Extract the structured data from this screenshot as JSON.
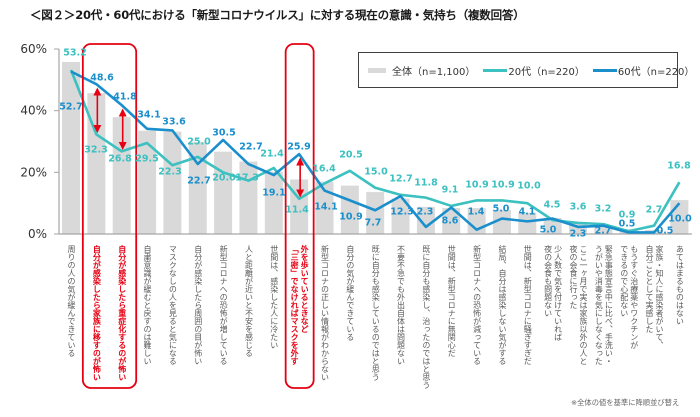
{
  "title": "＜図２＞20代・60代における「新型コロナウイルス」に対する現在の意識・気持ち（複数回答）",
  "footnote": "※全体の値を基準に降順並び替え",
  "colors": {
    "overall": "#d9d9d9",
    "age20s": "#3cc0c0",
    "age60s": "#1a8fcc",
    "highlight": "#e60012",
    "axis": "#a6a6a6"
  },
  "legend": {
    "items": [
      {
        "label": "全体（n=1,100）",
        "kind": "bar",
        "color": "#d9d9d9"
      },
      {
        "label": "20代（n=220）",
        "kind": "line",
        "color": "#3cc0c0"
      },
      {
        "label": "60代（n=220）",
        "kind": "line",
        "color": "#1a8fcc"
      }
    ]
  },
  "chart_data": {
    "type": "bar",
    "title": "＜図２＞20代・60代における「新型コロナウイルス」に対する現在の意識・気持ち（複数回答）",
    "xlabel": "",
    "ylabel": "",
    "ylim": [
      0,
      60
    ],
    "yticks": [
      0,
      20,
      40,
      60
    ],
    "ytick_labels": [
      "0%",
      "20%",
      "40%",
      "60%"
    ],
    "grid": false,
    "legend_position": "top-right",
    "categories": [
      "周りの人の気が緩んできている",
      "自分が感染したら家族に移すのが怖い",
      "自分が感染したら重症化するのが怖い",
      "自粛意識が緩むと戻すのは難しい",
      "マスクなしの人を見ると気になる",
      "自分が感染したら周囲の目が怖い",
      "新型コロナへの恐怖が増している",
      "人と距離が近いと不安を感じる",
      "世間は、感染した人に冷たい",
      "外を歩いているときなど\n「三密」でなければマスクを外す",
      "新型コロナの正しい情報がわからない",
      "自分の気が緩んできている",
      "既に自分も感染しているのではと思う",
      "不要不急でも外出自体は問題ない",
      "既に自分も感染し、治ったのではと思う",
      "世間は、新型コロナに無関心だ",
      "新型コロナへの恐怖が減っている",
      "結局、自分は感染しない気がする",
      "世間は、新型コロナに騒ぎすぎだ",
      "少人数で気を付けていれば\n夜の会食も問題ない",
      "ここ一ヶ月で実は家族以外の人と\n夜の会食に行った",
      "緊急事態宣言中に比べ、手洗い・\nうがいや消毒を気にしなくなった",
      "もうすぐ治療薬やワクチンが\nできるので心配ない",
      "家族・知人に感染者がいて、\n自分ごととして実感した",
      "あてはまるものはない"
    ],
    "series": [
      {
        "name": "全体（n=1,100）",
        "type": "bar",
        "labeled": false,
        "values": [
          55.8,
          45.7,
          37.9,
          33.5,
          33.2,
          29.9,
          26.7,
          23.5,
          20.2,
          17.7,
          17.0,
          15.7,
          13.6,
          11.5,
          8.8,
          8.4,
          8.4,
          7.8,
          6.9,
          5.2,
          3.9,
          2.9,
          1.6,
          1.3,
          11.0
        ]
      },
      {
        "name": "20代（n=220）",
        "type": "line",
        "labeled": true,
        "values": [
          53.2,
          32.3,
          26.8,
          29.5,
          22.3,
          25.0,
          20.0,
          17.3,
          21.4,
          11.4,
          16.4,
          20.5,
          15.0,
          12.7,
          11.8,
          9.1,
          10.9,
          10.9,
          10.0,
          4.5,
          3.6,
          3.2,
          0.9,
          2.7,
          16.8
        ]
      },
      {
        "name": "60代（n=220）",
        "type": "line",
        "labeled": true,
        "values": [
          52.7,
          48.6,
          41.8,
          34.1,
          33.6,
          22.7,
          30.5,
          22.7,
          19.1,
          25.9,
          14.1,
          10.9,
          7.7,
          12.3,
          2.3,
          8.6,
          1.4,
          5.0,
          4.1,
          5.0,
          2.3,
          2.7,
          0.5,
          0.5,
          10.0
        ]
      }
    ],
    "annotations": {
      "highlighted_categories": [
        1,
        2,
        9
      ],
      "boxes": [
        [
          1,
          2
        ],
        [
          9,
          9
        ]
      ],
      "gap_arrows": [
        1,
        2,
        9
      ]
    },
    "footnote": "※全体の値を基準に降順並び替え"
  }
}
